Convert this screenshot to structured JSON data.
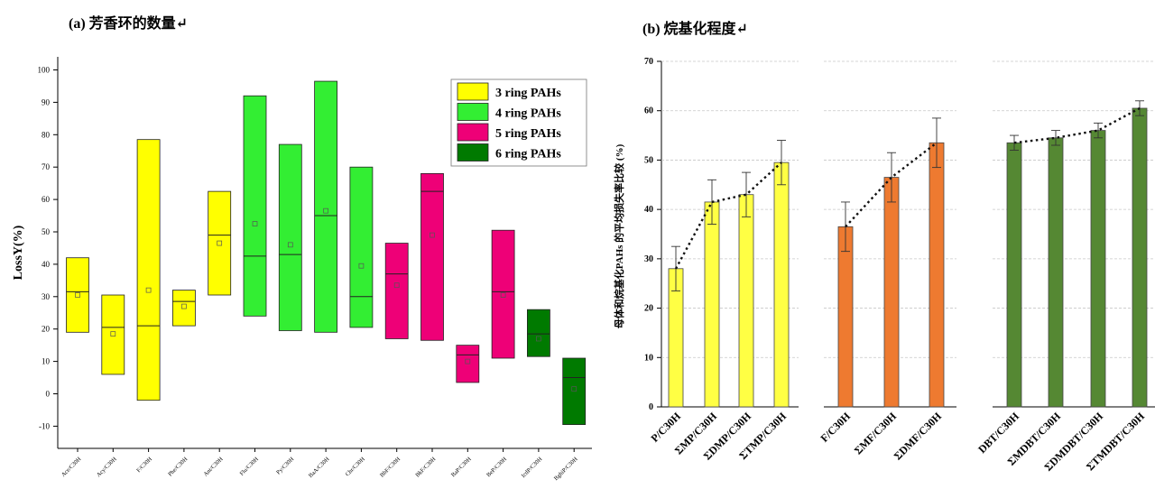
{
  "panel_a_title": "(a)  芳香环的数量↵",
  "panel_b_title": "(b)  烷基化程度↵",
  "legend_a": [
    {
      "label": "3 ring PAHs",
      "color": "#ffff00"
    },
    {
      "label": "4 ring PAHs",
      "color": "#33ee33"
    },
    {
      "label": "5 ring PAHs",
      "color": "#ee0077"
    },
    {
      "label": "6 ring PAHs",
      "color": "#007a00"
    }
  ],
  "chart_data": [
    {
      "type": "box",
      "title": "(a)  芳香环的数量↵",
      "ylabel": "LossY(%)",
      "ylim": [
        -10,
        100
      ],
      "yticks": [
        -10,
        0,
        10,
        20,
        30,
        40,
        50,
        60,
        70,
        80,
        90,
        100
      ],
      "legend_position": "top-right",
      "categories": [
        "Ace/C30H",
        "Acy/C30H",
        "F/C30H",
        "Phe/C30H",
        "Ant/C30H",
        "Flu/C30H",
        "Py/C30H",
        "BaA/C30H",
        "Chr/C30H",
        "BbF/C30H",
        "BkF/C30H",
        "BaP/C30H",
        "BeP/C30H",
        "IcdP/C30H",
        "BghiP/C30H"
      ],
      "groups": [
        3,
        3,
        3,
        3,
        3,
        4,
        4,
        4,
        4,
        5,
        5,
        5,
        5,
        6,
        6
      ],
      "low": [
        19,
        6,
        -2,
        21,
        30.5,
        24,
        19.5,
        19,
        20.5,
        17,
        16.5,
        3.5,
        11,
        11.5,
        -9.5
      ],
      "high": [
        42,
        30.5,
        78.5,
        32,
        62.5,
        92,
        77,
        96.5,
        70,
        46.5,
        68,
        15,
        50.5,
        26,
        11
      ],
      "median": [
        31.5,
        20.5,
        21,
        28.5,
        49,
        42.5,
        43,
        55,
        30,
        37,
        62.5,
        12,
        31.5,
        18.5,
        5
      ],
      "mean": [
        30.5,
        18.5,
        32,
        27,
        46.5,
        52.5,
        46,
        56.5,
        39.5,
        33.5,
        49,
        10,
        30.5,
        17,
        1.5
      ]
    },
    {
      "type": "bar",
      "title": "(b)  烷基化程度↵",
      "ylabel": "母体和烷基化PAHs 的平均损失率比较 (%)",
      "ylim": [
        0,
        70
      ],
      "yticks": [
        0,
        10,
        20,
        30,
        40,
        50,
        60,
        70
      ],
      "panels": [
        {
          "color": "#ffff44",
          "categories": [
            "P/C30H",
            "ΣMP/C30H",
            "ΣDMP/C30H",
            "ΣTMP/C30H"
          ],
          "values": [
            28,
            41.5,
            43,
            49.5
          ],
          "errors": [
            4.5,
            4.5,
            4.5,
            4.5
          ]
        },
        {
          "color": "#ee7a30",
          "categories": [
            "F/C30H",
            "ΣMF/C30H",
            "ΣDMF/C30H"
          ],
          "values": [
            36.5,
            46.5,
            53.5
          ],
          "errors": [
            5,
            5,
            5
          ]
        },
        {
          "color": "#558833",
          "categories": [
            "DBT/C30H",
            "ΣMDBT/C30H",
            "ΣDMDBT/C30H",
            "ΣTMDBT/C30H"
          ],
          "values": [
            53.5,
            54.5,
            56,
            60.5
          ],
          "errors": [
            1.5,
            1.5,
            1.5,
            1.5
          ]
        }
      ]
    }
  ]
}
